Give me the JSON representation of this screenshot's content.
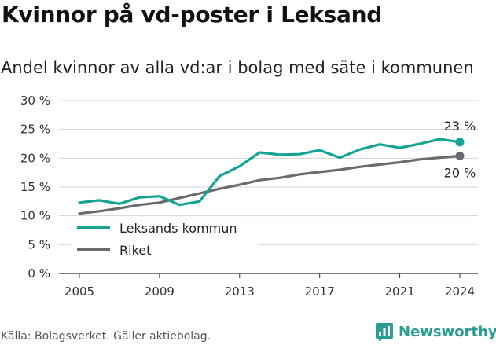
{
  "title": "Kvinnor på vd-poster i Leksand",
  "subtitle": "Andel kvinnor av alla vd:ar i bolag med säte i kommunen",
  "source": "Källa: Bolagsverket. Gäller aktiebolag.",
  "brand": {
    "name": "Newsworthy",
    "icon": "newsworthy-logo-icon",
    "color": "#2a9d91"
  },
  "chart_data": {
    "type": "line",
    "x": [
      2005,
      2006,
      2007,
      2008,
      2009,
      2010,
      2011,
      2012,
      2013,
      2014,
      2015,
      2016,
      2017,
      2018,
      2019,
      2020,
      2021,
      2022,
      2023,
      2024
    ],
    "series": [
      {
        "name": "Leksands kommun",
        "color": "#14a394",
        "values": [
          12.3,
          12.7,
          12.1,
          13.2,
          13.4,
          11.9,
          12.5,
          16.9,
          18.6,
          21.0,
          20.6,
          20.7,
          21.4,
          20.1,
          21.5,
          22.4,
          21.8,
          22.5,
          23.3,
          22.8
        ],
        "end_label": "23 %"
      },
      {
        "name": "Riket",
        "color": "#6b6a70",
        "values": [
          10.4,
          10.8,
          11.3,
          11.9,
          12.3,
          13.1,
          13.9,
          14.7,
          15.4,
          16.2,
          16.6,
          17.2,
          17.6,
          18.0,
          18.5,
          18.9,
          19.3,
          19.8,
          20.1,
          20.4
        ],
        "end_label": "20 %"
      }
    ],
    "ylim": [
      0,
      30
    ],
    "yticks": [
      0,
      5,
      10,
      15,
      20,
      25,
      30
    ],
    "ytick_labels": [
      "0 %",
      "5 %",
      "10 %",
      "15 %",
      "20 %",
      "25 %",
      "30 %"
    ],
    "xticks": [
      2005,
      2009,
      2013,
      2017,
      2021,
      2024
    ],
    "xtick_labels": [
      "2005",
      "2009",
      "2013",
      "2017",
      "2021",
      "2024"
    ],
    "grid": true,
    "legend_position": "bottom-left",
    "xlabel": "",
    "ylabel": ""
  }
}
